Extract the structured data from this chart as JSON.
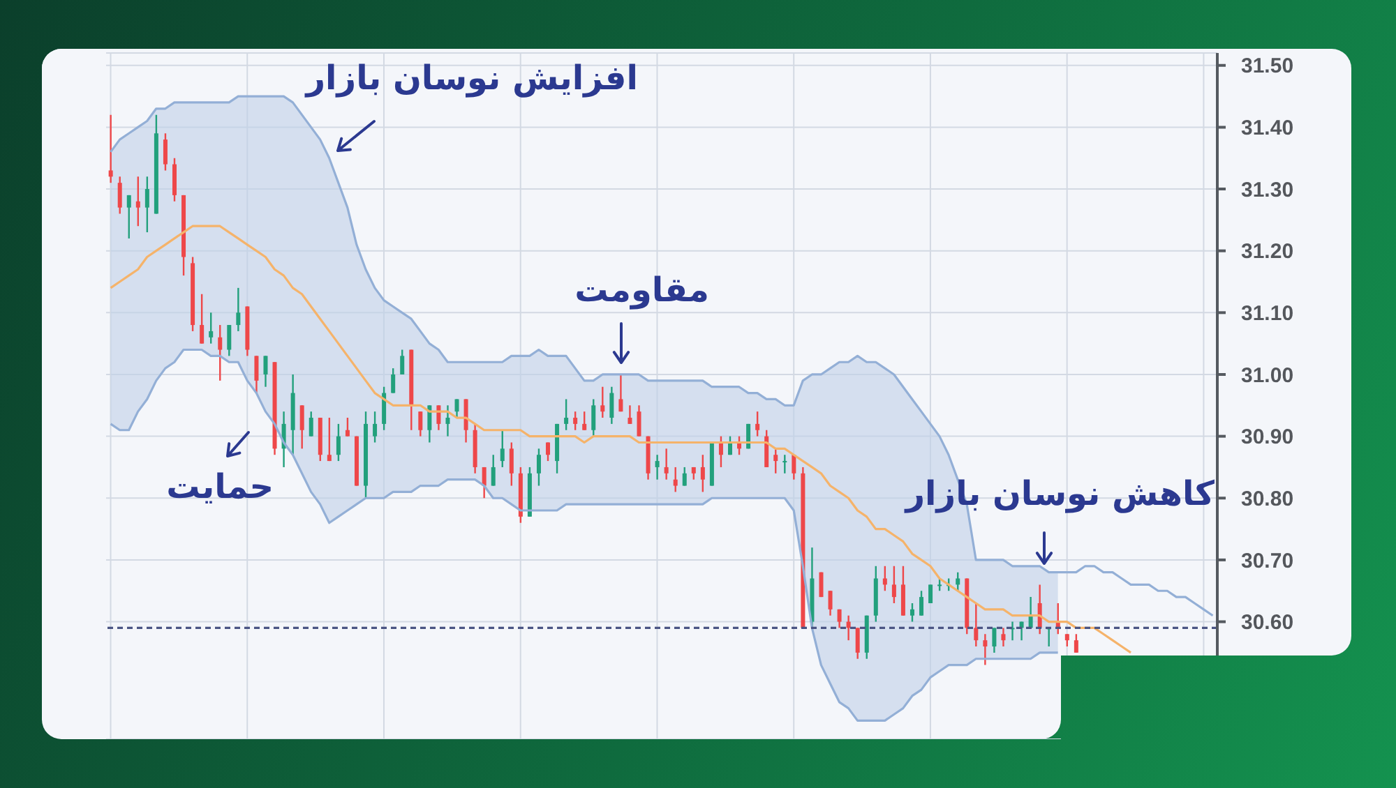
{
  "chart_data": {
    "type": "candlestick",
    "categories": [
      null,
      null,
      null,
      null,
      null,
      null,
      null,
      null,
      null,
      null,
      null,
      null,
      null,
      null,
      null,
      null,
      null,
      null,
      null,
      null,
      null,
      null,
      null,
      null,
      null,
      null,
      null,
      null,
      null,
      null,
      null,
      null,
      null,
      null,
      null,
      null,
      null,
      null,
      null,
      null,
      null,
      null,
      null,
      null,
      null,
      null,
      null,
      null,
      null,
      null,
      null,
      null,
      null,
      null,
      null,
      null,
      null,
      null,
      null,
      null,
      null,
      null,
      null,
      null,
      null,
      null,
      null,
      null,
      null,
      null,
      null,
      null,
      null,
      null,
      null,
      null,
      null,
      null,
      null,
      null,
      null,
      null,
      null,
      null,
      null,
      null,
      null,
      null,
      null,
      null,
      null,
      null,
      null,
      null,
      null,
      null,
      null,
      null,
      null,
      null,
      null,
      null,
      null,
      null,
      null,
      null,
      null,
      null,
      null,
      null,
      null,
      null,
      null,
      null,
      null,
      null,
      null,
      null,
      null,
      null,
      null,
      null
    ],
    "ohlc": [
      [
        31.33,
        31.42,
        31.31,
        31.32
      ],
      [
        31.31,
        31.32,
        31.26,
        31.27
      ],
      [
        31.27,
        31.29,
        31.22,
        31.29
      ],
      [
        31.28,
        31.32,
        31.24,
        31.27
      ],
      [
        31.27,
        31.32,
        31.23,
        31.3
      ],
      [
        31.26,
        31.42,
        31.26,
        31.39
      ],
      [
        31.38,
        31.39,
        31.33,
        31.34
      ],
      [
        31.34,
        31.35,
        31.28,
        31.29
      ],
      [
        31.29,
        31.29,
        31.16,
        31.19
      ],
      [
        31.18,
        31.19,
        31.07,
        31.08
      ],
      [
        31.08,
        31.13,
        31.05,
        31.05
      ],
      [
        31.06,
        31.1,
        31.05,
        31.07
      ],
      [
        31.06,
        31.08,
        30.99,
        31.04
      ],
      [
        31.04,
        31.08,
        31.03,
        31.08
      ],
      [
        31.08,
        31.14,
        31.07,
        31.1
      ],
      [
        31.11,
        31.11,
        31.03,
        31.04
      ],
      [
        31.03,
        31.03,
        30.97,
        30.99
      ],
      [
        31.0,
        31.03,
        30.98,
        31.03
      ],
      [
        31.02,
        31.02,
        30.87,
        30.88
      ],
      [
        30.88,
        30.94,
        30.85,
        30.92
      ],
      [
        30.91,
        31.0,
        30.87,
        30.97
      ],
      [
        30.95,
        30.95,
        30.88,
        30.91
      ],
      [
        30.9,
        30.94,
        30.9,
        30.93
      ],
      [
        30.93,
        30.93,
        30.86,
        30.87
      ],
      [
        30.87,
        30.93,
        30.86,
        30.86
      ],
      [
        30.87,
        30.92,
        30.86,
        30.9
      ],
      [
        30.91,
        30.93,
        30.9,
        30.9
      ],
      [
        30.9,
        30.9,
        30.82,
        30.82
      ],
      [
        30.82,
        30.94,
        30.8,
        30.92
      ],
      [
        30.9,
        30.94,
        30.89,
        30.92
      ],
      [
        30.92,
        30.98,
        30.91,
        30.97
      ],
      [
        30.97,
        31.01,
        30.97,
        31.0
      ],
      [
        31.0,
        31.04,
        31.0,
        31.03
      ],
      [
        31.04,
        31.04,
        30.91,
        30.95
      ],
      [
        30.94,
        30.94,
        30.9,
        30.91
      ],
      [
        30.91,
        30.95,
        30.89,
        30.95
      ],
      [
        30.95,
        30.95,
        30.91,
        30.92
      ],
      [
        30.92,
        30.95,
        30.9,
        30.93
      ],
      [
        30.94,
        30.96,
        30.93,
        30.96
      ],
      [
        30.96,
        30.96,
        30.89,
        30.91
      ],
      [
        30.91,
        30.92,
        30.84,
        30.85
      ],
      [
        30.85,
        30.85,
        30.8,
        30.82
      ],
      [
        30.82,
        30.87,
        30.82,
        30.85
      ],
      [
        30.86,
        30.91,
        30.85,
        30.88
      ],
      [
        30.88,
        30.89,
        30.82,
        30.84
      ],
      [
        30.84,
        30.85,
        30.76,
        30.77
      ],
      [
        30.77,
        30.85,
        30.77,
        30.84
      ],
      [
        30.84,
        30.88,
        30.82,
        30.87
      ],
      [
        30.89,
        30.89,
        30.86,
        30.87
      ],
      [
        30.86,
        30.92,
        30.84,
        30.92
      ],
      [
        30.92,
        30.96,
        30.91,
        30.93
      ],
      [
        30.93,
        30.94,
        30.91,
        30.92
      ],
      [
        30.92,
        30.94,
        30.91,
        30.91
      ],
      [
        30.91,
        30.96,
        30.9,
        30.95
      ],
      [
        30.95,
        30.98,
        30.93,
        30.94
      ],
      [
        30.93,
        30.98,
        30.92,
        30.97
      ],
      [
        30.96,
        31.0,
        30.94,
        30.94
      ],
      [
        30.93,
        30.95,
        30.92,
        30.92
      ],
      [
        30.94,
        30.95,
        30.9,
        30.9
      ],
      [
        30.9,
        30.9,
        30.83,
        30.84
      ],
      [
        30.85,
        30.87,
        30.83,
        30.86
      ],
      [
        30.85,
        30.88,
        30.83,
        30.84
      ],
      [
        30.83,
        30.85,
        30.81,
        30.82
      ],
      [
        30.82,
        30.85,
        30.82,
        30.84
      ],
      [
        30.85,
        30.85,
        30.83,
        30.84
      ],
      [
        30.85,
        30.87,
        30.81,
        30.83
      ],
      [
        30.82,
        30.89,
        30.82,
        30.89
      ],
      [
        30.89,
        30.9,
        30.85,
        30.87
      ],
      [
        30.87,
        30.9,
        30.87,
        30.89
      ],
      [
        30.89,
        30.9,
        30.87,
        30.88
      ],
      [
        30.88,
        30.92,
        30.88,
        30.92
      ],
      [
        30.92,
        30.94,
        30.9,
        30.91
      ],
      [
        30.9,
        30.91,
        30.85,
        30.85
      ],
      [
        30.87,
        30.88,
        30.84,
        30.86
      ],
      [
        30.86,
        30.87,
        30.84,
        30.86
      ],
      [
        30.87,
        30.87,
        30.83,
        30.84
      ],
      [
        30.84,
        30.85,
        30.59,
        30.59
      ],
      [
        30.6,
        30.72,
        30.59,
        30.67
      ],
      [
        30.68,
        30.68,
        30.64,
        30.64
      ],
      [
        30.65,
        30.65,
        30.61,
        30.62
      ],
      [
        30.62,
        30.62,
        30.59,
        30.6
      ],
      [
        30.6,
        30.61,
        30.57,
        30.59
      ],
      [
        30.59,
        30.59,
        30.54,
        30.55
      ],
      [
        30.55,
        30.61,
        30.54,
        30.61
      ],
      [
        30.61,
        30.69,
        30.6,
        30.67
      ],
      [
        30.67,
        30.69,
        30.65,
        30.66
      ],
      [
        30.66,
        30.69,
        30.63,
        30.64
      ],
      [
        30.66,
        30.69,
        30.61,
        30.61
      ],
      [
        30.61,
        30.63,
        30.6,
        30.62
      ],
      [
        30.61,
        30.65,
        30.61,
        30.64
      ],
      [
        30.63,
        30.66,
        30.63,
        30.66
      ],
      [
        30.66,
        30.67,
        30.65,
        30.66
      ],
      [
        30.66,
        30.67,
        30.65,
        30.66
      ],
      [
        30.66,
        30.68,
        30.65,
        30.67
      ],
      [
        30.67,
        30.67,
        30.58,
        30.59
      ],
      [
        30.59,
        30.63,
        30.56,
        30.57
      ],
      [
        30.57,
        30.58,
        30.53,
        30.56
      ],
      [
        30.56,
        30.59,
        30.55,
        30.59
      ],
      [
        30.58,
        30.59,
        30.56,
        30.57
      ],
      [
        30.59,
        30.6,
        30.57,
        30.59
      ],
      [
        30.59,
        30.6,
        30.57,
        30.6
      ],
      [
        30.59,
        30.64,
        30.59,
        30.61
      ],
      [
        30.63,
        30.66,
        30.58,
        30.59
      ],
      [
        30.59,
        30.59,
        30.56,
        30.59
      ],
      [
        30.6,
        30.63,
        30.58,
        30.59
      ],
      [
        30.58,
        30.58,
        30.56,
        30.57
      ],
      [
        30.57,
        30.58,
        30.55,
        30.55
      ],
      null,
      null,
      null,
      null,
      null,
      null,
      null,
      null,
      null,
      null,
      null,
      null,
      null,
      null,
      null
    ],
    "colors": [
      "#ee4749",
      "#ee4749",
      "#22a07c",
      "#ee4749",
      "#22a07c",
      "#22a07c",
      "#ee4749",
      "#ee4749",
      "#ee4749",
      "#ee4749",
      "#ee4749",
      "#22a07c",
      "#ee4749",
      "#22a07c",
      "#22a07c",
      "#ee4749",
      "#ee4749",
      "#22a07c",
      "#ee4749",
      "#22a07c",
      "#22a07c",
      "#ee4749",
      "#22a07c",
      "#ee4749",
      "#ee4749",
      "#22a07c",
      "#ee4749",
      "#ee4749",
      "#22a07c",
      "#22a07c",
      "#22a07c",
      "#22a07c",
      "#22a07c",
      "#ee4749",
      "#ee4749",
      "#22a07c",
      "#ee4749",
      "#22a07c",
      "#22a07c",
      "#ee4749",
      "#ee4749",
      "#ee4749",
      "#22a07c",
      "#22a07c",
      "#ee4749",
      "#ee4749",
      "#22a07c",
      "#22a07c",
      "#ee4749",
      "#22a07c",
      "#22a07c",
      "#ee4749",
      "#ee4749",
      "#22a07c",
      "#ee4749",
      "#22a07c",
      "#ee4749",
      "#ee4749",
      "#ee4749",
      "#ee4749",
      "#22a07c",
      "#ee4749",
      "#ee4749",
      "#22a07c",
      "#ee4749",
      "#ee4749",
      "#22a07c",
      "#ee4749",
      "#22a07c",
      "#ee4749",
      "#22a07c",
      "#ee4749",
      "#ee4749",
      "#ee4749",
      "#22a07c",
      "#ee4749",
      "#ee4749",
      "#22a07c",
      "#ee4749",
      "#ee4749",
      "#ee4749",
      "#ee4749",
      "#ee4749",
      "#22a07c",
      "#22a07c",
      "#ee4749",
      "#ee4749",
      "#ee4749",
      "#22a07c",
      "#22a07c",
      "#22a07c",
      "#22a07c",
      "#22a07c",
      "#22a07c",
      "#ee4749",
      "#ee4749",
      "#ee4749",
      "#22a07c",
      "#ee4749",
      "#22a07c",
      "#22a07c",
      "#22a07c",
      "#ee4749",
      "#22a07c",
      "#ee4749",
      "#ee4749",
      "#ee4749",
      null,
      null,
      null,
      null,
      null,
      null,
      null,
      null,
      null,
      null,
      null,
      null,
      null,
      null,
      null
    ],
    "series": [
      {
        "type": "line",
        "color": "#f5b36a",
        "values": [
          31.14,
          31.15,
          31.16,
          31.17,
          31.19,
          31.2,
          31.21,
          31.22,
          31.23,
          31.24,
          31.24,
          31.24,
          31.24,
          31.23,
          31.22,
          31.21,
          31.2,
          31.19,
          31.17,
          31.16,
          31.14,
          31.13,
          31.11,
          31.09,
          31.07,
          31.05,
          31.03,
          31.01,
          30.99,
          30.97,
          30.96,
          30.95,
          30.95,
          30.95,
          30.95,
          30.94,
          30.94,
          30.94,
          30.93,
          30.93,
          30.92,
          30.91,
          30.91,
          30.91,
          30.91,
          30.91,
          30.9,
          30.9,
          30.9,
          30.9,
          30.9,
          30.9,
          30.89,
          30.9,
          30.9,
          30.9,
          30.9,
          30.9,
          30.89,
          30.89,
          30.89,
          30.89,
          30.89,
          30.89,
          30.89,
          30.89,
          30.89,
          30.89,
          30.89,
          30.89,
          30.89,
          30.89,
          30.89,
          30.88,
          30.88,
          30.87,
          30.86,
          30.85,
          30.84,
          30.82,
          30.81,
          30.8,
          30.78,
          30.77,
          30.75,
          30.75,
          30.74,
          30.73,
          30.71,
          30.7,
          30.69,
          30.67,
          30.66,
          30.65,
          30.64,
          30.63,
          30.62,
          30.62,
          30.62,
          30.61,
          30.61,
          30.61,
          30.61,
          30.6,
          30.6,
          30.6,
          30.59,
          30.59,
          30.59,
          30.58,
          30.57,
          30.56,
          30.55,
          null,
          null,
          null,
          null,
          null,
          null,
          null,
          null,
          null
        ],
        "lower": [
          30.92,
          30.91,
          30.91,
          30.94,
          30.96,
          30.99,
          31.01,
          31.02,
          31.04,
          31.04,
          31.04,
          31.03,
          31.03,
          31.02,
          31.02,
          30.99,
          30.97,
          30.94,
          30.92,
          30.89,
          30.87,
          30.84,
          30.81,
          30.79,
          30.76,
          30.77,
          30.78,
          30.79,
          30.8,
          30.8,
          30.8,
          30.81,
          30.81,
          30.81,
          30.82,
          30.82,
          30.82,
          30.83,
          30.83,
          30.83,
          30.83,
          30.82,
          30.8,
          30.8,
          30.79,
          30.78,
          30.78,
          30.78,
          30.78,
          30.78,
          30.79,
          30.79,
          30.79,
          30.79,
          30.79,
          30.79,
          30.79,
          30.79,
          30.79,
          30.79,
          30.79,
          30.79,
          30.79,
          30.79,
          30.79,
          30.79,
          30.8,
          30.8,
          30.8,
          30.8,
          30.8,
          30.8,
          30.8,
          30.8,
          30.8,
          30.78,
          30.69,
          30.59,
          30.53,
          30.5,
          30.47,
          30.46,
          30.44,
          30.44,
          30.44,
          30.44,
          30.45,
          30.46,
          30.48,
          30.49,
          30.51,
          30.52,
          30.53,
          30.53,
          30.53,
          30.54,
          30.54,
          30.54,
          30.54,
          30.54,
          30.54,
          30.54,
          30.55,
          30.55,
          30.55,
          null,
          null,
          null,
          null,
          null,
          null,
          null,
          null,
          null,
          null,
          null,
          null,
          null,
          null,
          null,
          null,
          null
        ],
        "upper": [
          31.36,
          31.38,
          31.39,
          31.4,
          31.41,
          31.43,
          31.43,
          31.44,
          31.44,
          31.44,
          31.44,
          31.44,
          31.44,
          31.44,
          31.45,
          31.45,
          31.45,
          31.45,
          31.45,
          31.45,
          31.44,
          31.42,
          31.4,
          31.38,
          31.35,
          31.31,
          31.27,
          31.21,
          31.17,
          31.14,
          31.12,
          31.11,
          31.1,
          31.09,
          31.07,
          31.05,
          31.04,
          31.02,
          31.02,
          31.02,
          31.02,
          31.02,
          31.02,
          31.02,
          31.03,
          31.03,
          31.03,
          31.04,
          31.03,
          31.03,
          31.03,
          31.01,
          30.99,
          30.99,
          31.0,
          31.0,
          31.0,
          31.0,
          31.0,
          30.99,
          30.99,
          30.99,
          30.99,
          30.99,
          30.99,
          30.99,
          30.98,
          30.98,
          30.98,
          30.98,
          30.97,
          30.97,
          30.96,
          30.96,
          30.95,
          30.95,
          30.99,
          31.0,
          31.0,
          31.01,
          31.02,
          31.02,
          31.03,
          31.02,
          31.02,
          31.01,
          31.0,
          30.98,
          30.96,
          30.94,
          30.92,
          30.9,
          30.87,
          30.83,
          30.79,
          30.7,
          30.7,
          30.7,
          30.7,
          30.69,
          30.69,
          30.69,
          30.69,
          30.68,
          30.68,
          null,
          null,
          null,
          null,
          null,
          null,
          null,
          null,
          null,
          null,
          null,
          null,
          null,
          null,
          null,
          null,
          null
        ]
      },
      {
        "type": "line",
        "color": "#93afd6",
        "values": [
          31.36,
          31.38,
          31.39,
          31.4,
          31.41,
          31.43,
          31.43,
          31.44,
          31.44,
          31.44,
          31.44,
          31.44,
          31.44,
          31.44,
          31.45,
          31.45,
          31.45,
          31.45,
          31.45,
          31.45,
          31.44,
          31.42,
          31.4,
          31.38,
          31.35,
          31.31,
          31.27,
          31.21,
          31.17,
          31.14,
          31.12,
          31.11,
          31.1,
          31.09,
          31.07,
          31.05,
          31.04,
          31.02,
          31.02,
          31.02,
          31.02,
          31.02,
          31.02,
          31.02,
          31.03,
          31.03,
          31.03,
          31.04,
          31.03,
          31.03,
          31.03,
          31.01,
          30.99,
          30.99,
          31.0,
          31.0,
          31.0,
          31.0,
          31.0,
          30.99,
          30.99,
          30.99,
          30.99,
          30.99,
          30.99,
          30.99,
          30.98,
          30.98,
          30.98,
          30.98,
          30.97,
          30.97,
          30.96,
          30.96,
          30.95,
          30.95,
          30.99,
          31.0,
          31.0,
          31.01,
          31.02,
          31.02,
          31.03,
          31.02,
          31.02,
          31.01,
          31.0,
          30.98,
          30.96,
          30.94,
          30.92,
          30.9,
          30.87,
          30.83,
          30.79,
          30.7,
          30.7,
          30.7,
          30.7,
          30.69,
          30.69,
          30.69,
          30.69,
          30.68,
          30.68,
          30.68,
          30.68,
          30.69,
          30.69,
          30.68,
          30.68,
          30.67,
          30.66,
          30.66,
          30.66,
          30.65,
          30.65,
          30.64,
          30.64,
          30.63,
          30.62,
          30.61
        ]
      },
      {
        "type": "line",
        "color": "#93afd6",
        "values": [
          30.92,
          30.91,
          30.91,
          30.94,
          30.96,
          30.99,
          31.01,
          31.02,
          31.04,
          31.04,
          31.04,
          31.03,
          31.03,
          31.02,
          31.02,
          30.99,
          30.97,
          30.94,
          30.92,
          30.89,
          30.87,
          30.84,
          30.81,
          30.79,
          30.76,
          30.77,
          30.78,
          30.79,
          30.8,
          30.8,
          30.8,
          30.81,
          30.81,
          30.81,
          30.82,
          30.82,
          30.82,
          30.83,
          30.83,
          30.83,
          30.83,
          30.82,
          30.8,
          30.8,
          30.79,
          30.78,
          30.78,
          30.78,
          30.78,
          30.78,
          30.79,
          30.79,
          30.79,
          30.79,
          30.79,
          30.79,
          30.79,
          30.79,
          30.79,
          30.79,
          30.79,
          30.79,
          30.79,
          30.79,
          30.79,
          30.79,
          30.8,
          30.8,
          30.8,
          30.8,
          30.8,
          30.8,
          30.8,
          30.8,
          30.8,
          30.78,
          30.69,
          30.59,
          30.53,
          30.5,
          30.47,
          30.46,
          30.44,
          30.44,
          30.44,
          30.44,
          30.45,
          30.46,
          30.48,
          30.49,
          30.51,
          30.52,
          30.53,
          30.53,
          30.53,
          30.54,
          30.54,
          30.54,
          30.54,
          30.54,
          30.54,
          30.54,
          30.55,
          30.55,
          30.55,
          null,
          null,
          null,
          null,
          null,
          null,
          null,
          null,
          null,
          null,
          null,
          null,
          null,
          null,
          null,
          null,
          null
        ]
      }
    ],
    "ylim": [
      30.41,
      31.52
    ],
    "yticks": [
      {
        "value": 30.6,
        "label": "30.60"
      },
      {
        "value": 30.7,
        "label": "30.70"
      },
      {
        "value": 30.8,
        "label": "30.80"
      },
      {
        "value": 30.9,
        "label": "30.90"
      },
      {
        "value": 31.0,
        "label": "31.00"
      },
      {
        "value": 31.1,
        "label": "31.10"
      },
      {
        "value": 31.2,
        "label": "31.20"
      },
      {
        "value": 31.3,
        "label": "31.30"
      },
      {
        "value": 31.4,
        "label": "31.40"
      },
      {
        "value": 31.5,
        "label": "31.50"
      }
    ],
    "grid": true,
    "ref_lines": [
      {
        "axis": "y",
        "value": 30.59,
        "color": "#4b5584",
        "line_style": "dashed"
      }
    ],
    "annotations": [
      "افزایش نوسان بازار",
      "مقاومت",
      "حمایت",
      "کاهش نوسان بازار"
    ]
  }
}
